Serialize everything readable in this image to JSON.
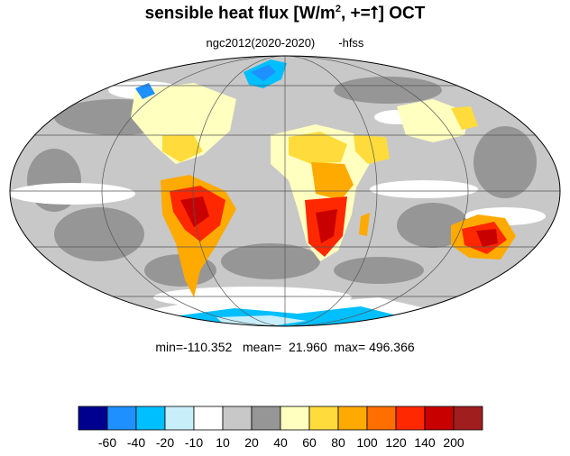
{
  "title": {
    "main": "sensible heat flux [W/m",
    "sup": "2",
    "tail": ", +=",
    "arrow": "⭡",
    "month": "]  OCT"
  },
  "subtitle": {
    "run": "ngc2012(2020-2020)",
    "variable": "-hfss"
  },
  "stats": {
    "min_label": "min=",
    "min": "-110.352",
    "mean_label": "mean=",
    "mean": "21.960",
    "max_label": "max=",
    "max": "496.366"
  },
  "colorbar": {
    "colors": [
      "#00008f",
      "#1e90ff",
      "#00bfff",
      "#c8eefa",
      "#ffffff",
      "#c8c8c8",
      "#969696",
      "#ffffc0",
      "#ffdc3c",
      "#ffaa00",
      "#ff6e00",
      "#ff2800",
      "#c80000",
      "#a01e1e"
    ],
    "labels": [
      "-60",
      "-40",
      "-20",
      "-10",
      "10",
      "20",
      "40",
      "60",
      "80",
      "100",
      "120",
      "140",
      "200"
    ]
  },
  "map": {
    "projection": "Mollweide",
    "background_color": "#c8c8c8",
    "graticule": true
  }
}
